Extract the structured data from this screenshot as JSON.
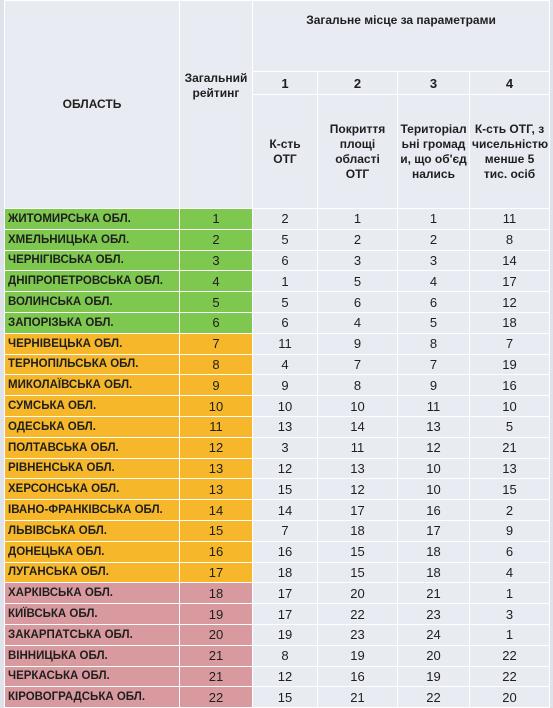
{
  "header": {
    "region_label": "ОБЛАСТЬ",
    "rating_label": "Загальний рейтинг",
    "group_label": "Загальне місце за параметрами",
    "params": [
      {
        "num": "1",
        "label": "К-сть ОТГ"
      },
      {
        "num": "2",
        "label": "Покриття площі області ОТГ"
      },
      {
        "num": "3",
        "label": "Територіальні громади, що об'єднались"
      },
      {
        "num": "4",
        "label": "К-сть ОТГ, з чисельністю менше 5 тис. осіб"
      }
    ]
  },
  "colors": {
    "green": "#7ec850",
    "orange": "#f6b72a",
    "red": "#d99a9f"
  },
  "rows": [
    {
      "region": "ЖИТОМИРСЬКА ОБЛ.",
      "rating": "1",
      "p1": "2",
      "p2": "1",
      "p3": "1",
      "p4": "11",
      "tier": "green"
    },
    {
      "region": "ХМЕЛЬНИЦЬКА ОБЛ.",
      "rating": "2",
      "p1": "5",
      "p2": "2",
      "p3": "2",
      "p4": "8",
      "tier": "green"
    },
    {
      "region": "ЧЕРНІГІВСЬКА ОБЛ.",
      "rating": "3",
      "p1": "6",
      "p2": "3",
      "p3": "3",
      "p4": "14",
      "tier": "green"
    },
    {
      "region": "ДНІПРОПЕТРОВСЬКА ОБЛ.",
      "rating": "4",
      "p1": "1",
      "p2": "5",
      "p3": "4",
      "p4": "17",
      "tier": "green"
    },
    {
      "region": "ВОЛИНСЬКА ОБЛ.",
      "rating": "5",
      "p1": "5",
      "p2": "6",
      "p3": "6",
      "p4": "12",
      "tier": "green"
    },
    {
      "region": "ЗАПОРІЗЬКА ОБЛ.",
      "rating": "6",
      "p1": "6",
      "p2": "4",
      "p3": "5",
      "p4": "18",
      "tier": "green"
    },
    {
      "region": "ЧЕРНІВЕЦЬКА ОБЛ.",
      "rating": "7",
      "p1": "11",
      "p2": "9",
      "p3": "8",
      "p4": "7",
      "tier": "orange"
    },
    {
      "region": "ТЕРНОПІЛЬСЬКА ОБЛ.",
      "rating": "8",
      "p1": "4",
      "p2": "7",
      "p3": "7",
      "p4": "19",
      "tier": "orange"
    },
    {
      "region": "МИКОЛАЇВСЬКА ОБЛ.",
      "rating": "9",
      "p1": "9",
      "p2": "8",
      "p3": "9",
      "p4": "16",
      "tier": "orange"
    },
    {
      "region": "СУМСЬКА ОБЛ.",
      "rating": "10",
      "p1": "10",
      "p2": "10",
      "p3": "11",
      "p4": "10",
      "tier": "orange"
    },
    {
      "region": "ОДЕСЬКА ОБЛ.",
      "rating": "11",
      "p1": "13",
      "p2": "14",
      "p3": "13",
      "p4": "5",
      "tier": "orange"
    },
    {
      "region": "ПОЛТАВСЬКА ОБЛ.",
      "rating": "12",
      "p1": "3",
      "p2": "11",
      "p3": "12",
      "p4": "21",
      "tier": "orange"
    },
    {
      "region": "РІВНЕНСЬКА ОБЛ.",
      "rating": "13",
      "p1": "12",
      "p2": "13",
      "p3": "10",
      "p4": "13",
      "tier": "orange"
    },
    {
      "region": "ХЕРСОНСЬКА ОБЛ.",
      "rating": "13",
      "p1": "15",
      "p2": "12",
      "p3": "10",
      "p4": "15",
      "tier": "orange"
    },
    {
      "region": "ІВАНО-ФРАНКІВСЬКА ОБЛ.",
      "rating": "14",
      "p1": "14",
      "p2": "17",
      "p3": "16",
      "p4": "2",
      "tier": "orange"
    },
    {
      "region": "ЛЬВІВСЬКА ОБЛ.",
      "rating": "15",
      "p1": "7",
      "p2": "18",
      "p3": "17",
      "p4": "9",
      "tier": "orange"
    },
    {
      "region": "ДОНЕЦЬКА ОБЛ.",
      "rating": "16",
      "p1": "16",
      "p2": "15",
      "p3": "18",
      "p4": "6",
      "tier": "orange"
    },
    {
      "region": "ЛУГАНСЬКА ОБЛ.",
      "rating": "17",
      "p1": "18",
      "p2": "15",
      "p3": "18",
      "p4": "4",
      "tier": "orange"
    },
    {
      "region": "ХАРКІВСЬКА ОБЛ.",
      "rating": "18",
      "p1": "17",
      "p2": "20",
      "p3": "21",
      "p4": "1",
      "tier": "red"
    },
    {
      "region": "КИЇВСЬКА ОБЛ.",
      "rating": "19",
      "p1": "17",
      "p2": "22",
      "p3": "23",
      "p4": "3",
      "tier": "red"
    },
    {
      "region": "ЗАКАРПАТСЬКА ОБЛ.",
      "rating": "20",
      "p1": "19",
      "p2": "23",
      "p3": "24",
      "p4": "1",
      "tier": "red"
    },
    {
      "region": "ВІННИЦЬКА ОБЛ.",
      "rating": "21",
      "p1": "8",
      "p2": "19",
      "p3": "20",
      "p4": "22",
      "tier": "red"
    },
    {
      "region": "ЧЕРКАСЬКА ОБЛ.",
      "rating": "21",
      "p1": "12",
      "p2": "16",
      "p3": "19",
      "p4": "22",
      "tier": "red"
    },
    {
      "region": "КІРОВОГРАДСЬКА ОБЛ.",
      "rating": "22",
      "p1": "15",
      "p2": "21",
      "p3": "22",
      "p4": "20",
      "tier": "red"
    }
  ]
}
